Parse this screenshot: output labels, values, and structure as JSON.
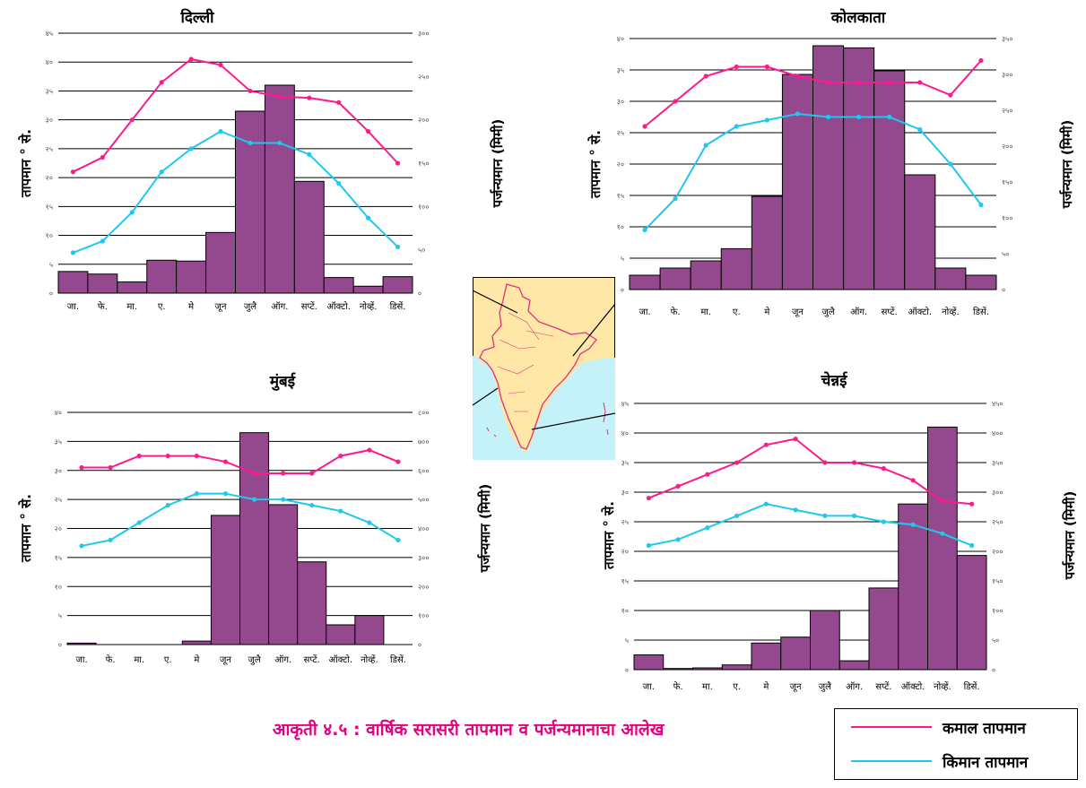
{
  "caption": "आकृती ४.५ : वार्षिक सरासरी तापमान व पर्जन्यमानाचा आलेख",
  "legend": {
    "max_label": "कमाल तापमान",
    "min_label": "किमान तापमान",
    "max_color": "#ff1a8c",
    "min_color": "#1ec8f0"
  },
  "colors": {
    "bar": "#94488e",
    "bar_stroke": "#000000"
  },
  "axis_labels": {
    "temp_left": "तापमान",
    "temp_unit": "° से.",
    "rain_right": "पर्जन्यमान (मिमी)"
  },
  "map": {
    "land_color": "#ffe7a8",
    "sea_color": "#c5f2f9",
    "border_color": "#e4307a"
  },
  "chart_data": [
    {
      "type": "bar",
      "title": "दिल्ली",
      "categories": [
        "जा.",
        "फे.",
        "मा.",
        "ए.",
        "मे",
        "जून",
        "जुलै",
        "ऑग.",
        "सप्टें.",
        "ऑक्टो.",
        "नोव्हें.",
        "डिसें."
      ],
      "ylim": [
        0,
        45
      ],
      "yticks": [
        "०",
        "५",
        "१०",
        "१५",
        "२०",
        "२५",
        "३०",
        "३५",
        "४०",
        "४५"
      ],
      "y2lim": [
        0,
        300
      ],
      "y2ticks": [
        "०",
        "५०",
        "१००",
        "१५०",
        "२००",
        "२५०",
        "३००"
      ],
      "bar_series": {
        "name": "पर्जन्यमान",
        "values": [
          25,
          22,
          13,
          38,
          37,
          70,
          210,
          240,
          129,
          18,
          8,
          19
        ]
      },
      "series": [
        {
          "name": "कमाल तापमान",
          "values": [
            21,
            23.5,
            30,
            36.5,
            40.5,
            39.5,
            35,
            34,
            33.8,
            33,
            28,
            22.5
          ]
        },
        {
          "name": "किमान तापमान",
          "values": [
            7,
            9,
            14,
            21,
            25,
            28,
            26,
            26,
            24,
            19,
            13,
            8
          ]
        }
      ]
    },
    {
      "type": "bar",
      "title": "कोलकाता",
      "categories": [
        "जा.",
        "फे.",
        "मा.",
        "ए.",
        "मे",
        "जून",
        "जुलै",
        "ऑग.",
        "सप्टें.",
        "ऑक्टो.",
        "नोव्हें.",
        "डिसें."
      ],
      "ylim": [
        0,
        40
      ],
      "yticks": [
        "०",
        "५",
        "१०",
        "१५",
        "२०",
        "२५",
        "३०",
        "३५",
        "४०"
      ],
      "y2lim": [
        0,
        350
      ],
      "y2ticks": [
        "०",
        "५०",
        "१००",
        "१५०",
        "२००",
        "२५०",
        "३००",
        "३५०"
      ],
      "bar_series": {
        "name": "पर्जन्यमान",
        "values": [
          20,
          30,
          40,
          57,
          130,
          300,
          340,
          337,
          305,
          160,
          30,
          20
        ]
      },
      "series": [
        {
          "name": "कमाल तापमान",
          "values": [
            26,
            30,
            34,
            35.5,
            35.5,
            34,
            33,
            33,
            33,
            33,
            31,
            36.5
          ]
        },
        {
          "name": "किमान तापमान",
          "values": [
            9.5,
            14.5,
            23,
            26,
            27,
            28,
            27.5,
            27.5,
            27.5,
            25.5,
            20,
            13.5
          ]
        }
      ]
    },
    {
      "type": "bar",
      "title": "मुंबई",
      "categories": [
        "जा.",
        "फे.",
        "मा.",
        "ए.",
        "मे",
        "जून",
        "जुलै",
        "ऑग.",
        "सप्टें.",
        "ऑक्टो.",
        "नोव्हें.",
        "डिसें."
      ],
      "ylim": [
        0,
        40
      ],
      "yticks": [
        "०",
        "५",
        "१०",
        "१५",
        "२०",
        "२५",
        "३०",
        "३५",
        "४०"
      ],
      "y2lim": [
        0,
        800
      ],
      "y2ticks": [
        "०",
        "१००",
        "२००",
        "३००",
        "४००",
        "५००",
        "६००",
        "७००",
        "८००"
      ],
      "bar_series": {
        "name": "पर्जन्यमान",
        "values": [
          5,
          0,
          0,
          0,
          12,
          445,
          730,
          482,
          285,
          68,
          100,
          0
        ]
      },
      "series": [
        {
          "name": "कमाल तापमान",
          "values": [
            30.5,
            30.5,
            32.5,
            32.5,
            32.5,
            31.5,
            29.5,
            29.5,
            29.5,
            32.5,
            33.5,
            31.5
          ]
        },
        {
          "name": "किमान तापमान",
          "values": [
            17,
            18,
            21,
            24,
            26,
            26,
            25,
            25,
            24,
            23,
            21,
            18
          ]
        }
      ]
    },
    {
      "type": "bar",
      "title": "चेन्नई",
      "categories": [
        "जा.",
        "फे.",
        "मा.",
        "ए.",
        "मे",
        "जून",
        "जुलै",
        "ऑग.",
        "सप्टें.",
        "ऑक्टो.",
        "नोव्हें.",
        "डिसें."
      ],
      "ylim": [
        0,
        45
      ],
      "yticks": [
        "०",
        "५",
        "१०",
        "१५",
        "२०",
        "२५",
        "३०",
        "३५",
        "४०",
        "४५"
      ],
      "y2lim": [
        0,
        450
      ],
      "y2ticks": [
        "०",
        "५०",
        "१००",
        "१५०",
        "२००",
        "२५०",
        "३००",
        "३५०",
        "४००",
        "४५०"
      ],
      "bar_series": {
        "name": "पर्जन्यमान",
        "values": [
          25,
          2,
          3,
          8,
          45,
          55,
          100,
          15,
          138,
          280,
          410,
          193
        ]
      },
      "series": [
        {
          "name": "कमाल तापमान",
          "values": [
            29,
            31,
            33,
            35,
            38,
            39,
            35,
            35,
            34,
            32,
            28.5,
            28
          ]
        },
        {
          "name": "किमान तापमान",
          "values": [
            21,
            22,
            24,
            26,
            28,
            27,
            26,
            26,
            25,
            24.5,
            23,
            21
          ]
        }
      ]
    }
  ]
}
